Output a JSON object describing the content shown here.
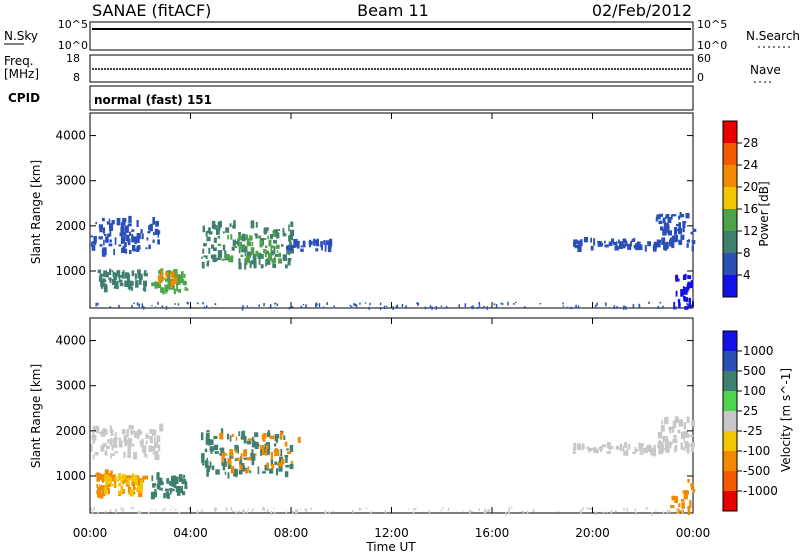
{
  "header": {
    "station": "SANAE (fitACF)",
    "beam": "Beam 11",
    "date": "02/Feb/2012"
  },
  "noise_panel": {
    "left_label": "N.Sky",
    "right_label": "N.Search",
    "left_ticks": [
      "10^5",
      "10^0"
    ],
    "right_ticks": [
      "10^5",
      "10^0"
    ]
  },
  "freq_panel": {
    "left_label_line1": "Freq.",
    "left_label_line2": "[MHz]",
    "right_label": "Nave",
    "left_ticks": [
      "18",
      "8"
    ],
    "right_ticks": [
      "60",
      "0"
    ]
  },
  "cpid_panel": {
    "label": "CPID",
    "value": "normal (fast) 151"
  },
  "chart_data": [
    {
      "type": "heatmap",
      "name": "power",
      "ylabel": "Slant Range [km]",
      "ylim": [
        180,
        4500
      ],
      "yticks": [
        "1000",
        "2000",
        "3000",
        "4000"
      ],
      "colorbar_label": "Power [dB]",
      "colorbar_ticks": [
        "4",
        "8",
        "12",
        "16",
        "20",
        "24",
        "28"
      ],
      "colorbar_colors": [
        "#1212e6",
        "#2a50b8",
        "#3f7f6f",
        "#4fa24a",
        "#f2c600",
        "#f28a00",
        "#f25a00",
        "#e80000"
      ],
      "patches": [
        {
          "t0": 0.0,
          "t1": 2.8,
          "r0": 1400,
          "r1": 2150,
          "c": "#2a50b8",
          "n": 90
        },
        {
          "t0": 0.3,
          "t1": 2.2,
          "r0": 600,
          "r1": 1000,
          "c": "#3f7f6f",
          "n": 60
        },
        {
          "t0": 2.4,
          "t1": 3.8,
          "r0": 550,
          "r1": 1000,
          "c": "#4fa24a",
          "n": 55
        },
        {
          "t0": 2.7,
          "t1": 3.3,
          "r0": 700,
          "r1": 950,
          "c": "#f28a00",
          "n": 12
        },
        {
          "t0": 4.4,
          "t1": 8.0,
          "r0": 1100,
          "r1": 2100,
          "c": "#3f7f6f",
          "n": 120
        },
        {
          "t0": 5.0,
          "t1": 7.5,
          "r0": 1200,
          "r1": 1900,
          "c": "#4fa24a",
          "n": 40
        },
        {
          "t0": 7.8,
          "t1": 9.6,
          "r0": 1450,
          "r1": 1650,
          "c": "#2a50b8",
          "n": 30
        },
        {
          "t0": 19.2,
          "t1": 24.0,
          "r0": 1500,
          "r1": 1700,
          "c": "#2a50b8",
          "n": 70
        },
        {
          "t0": 22.5,
          "t1": 24.0,
          "r0": 1650,
          "r1": 2250,
          "c": "#2a50b8",
          "n": 40
        },
        {
          "t0": 23.2,
          "t1": 24.0,
          "r0": 180,
          "r1": 900,
          "c": "#1212e6",
          "n": 25
        }
      ]
    },
    {
      "type": "heatmap",
      "name": "velocity",
      "ylabel": "Slant Range [km]",
      "ylim": [
        180,
        4500
      ],
      "yticks": [
        "1000",
        "2000",
        "3000",
        "4000"
      ],
      "colorbar_label": "Velocity [m s^-1]",
      "colorbar_ticks": [
        "1000",
        "500",
        "100",
        "25",
        "-25",
        "-100",
        "-500",
        "-1000"
      ],
      "colorbar_colors": [
        "#1212e6",
        "#2a50b8",
        "#3f7f6f",
        "#4fd44f",
        "#c8c8c8",
        "#f2c600",
        "#f28a00",
        "#f25a00",
        "#e80000"
      ],
      "patches": [
        {
          "t0": 0.0,
          "t1": 2.8,
          "r0": 1400,
          "r1": 2100,
          "c": "#c8c8c8",
          "n": 90
        },
        {
          "t0": 0.2,
          "t1": 2.2,
          "r0": 550,
          "r1": 1100,
          "c": "#f28a00",
          "n": 55
        },
        {
          "t0": 0.5,
          "t1": 2.0,
          "r0": 600,
          "r1": 1000,
          "c": "#f2c600",
          "n": 30
        },
        {
          "t0": 2.4,
          "t1": 3.8,
          "r0": 550,
          "r1": 1000,
          "c": "#3f7f6f",
          "n": 50
        },
        {
          "t0": 4.4,
          "t1": 8.0,
          "r0": 1000,
          "r1": 2000,
          "c": "#3f7f6f",
          "n": 110
        },
        {
          "t0": 5.0,
          "t1": 8.3,
          "r0": 1100,
          "r1": 1900,
          "c": "#f28a00",
          "n": 45
        },
        {
          "t0": 19.2,
          "t1": 24.0,
          "r0": 1500,
          "r1": 1700,
          "c": "#c8c8c8",
          "n": 70
        },
        {
          "t0": 22.5,
          "t1": 24.0,
          "r0": 1650,
          "r1": 2250,
          "c": "#c8c8c8",
          "n": 40
        },
        {
          "t0": 23.0,
          "t1": 24.0,
          "r0": 180,
          "r1": 900,
          "c": "#f28a00",
          "n": 20
        }
      ]
    }
  ],
  "time_axis": {
    "label": "Time UT",
    "ticks": [
      "00:00",
      "04:00",
      "08:00",
      "12:00",
      "16:00",
      "20:00",
      "00:00"
    ]
  }
}
